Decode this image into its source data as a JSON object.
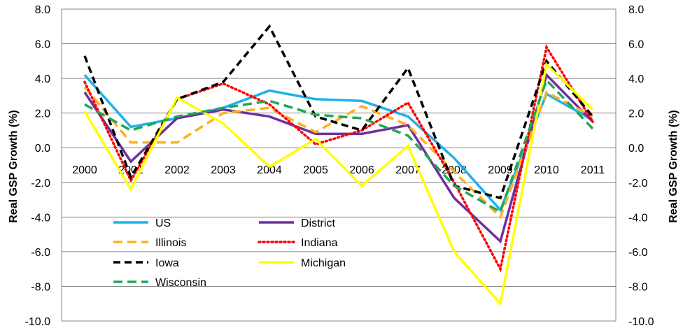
{
  "chart_data": {
    "type": "line",
    "title": "",
    "xlabel": "",
    "ylabel": "Real GSP Growth (%)",
    "ylabel_right": "Real GSP Growth (%)",
    "ylim": [
      -10,
      8
    ],
    "yticks": [
      "8.0",
      "6.0",
      "4.0",
      "2.0",
      "0.0",
      "-2.0",
      "-4.0",
      "-6.0",
      "-8.0",
      "-10.0"
    ],
    "grid": "horizontal",
    "legend_position": "lower-left inside",
    "categories": [
      "2000",
      "2001",
      "2002",
      "2003",
      "2004",
      "2005",
      "2006",
      "2007",
      "2008",
      "2009",
      "2010",
      "2011"
    ],
    "series": [
      {
        "name": "US",
        "color": "#1EB1EA",
        "dash": "solid",
        "values": [
          4.2,
          1.2,
          1.7,
          2.3,
          3.3,
          2.8,
          2.7,
          1.8,
          -0.6,
          -3.6,
          3.1,
          1.6
        ]
      },
      {
        "name": "District",
        "color": "#7030A0",
        "dash": "solid",
        "values": [
          3.2,
          -0.8,
          1.7,
          2.2,
          1.8,
          0.8,
          0.8,
          1.3,
          -2.9,
          -5.4,
          4.2,
          1.5
        ]
      },
      {
        "name": "Illinois",
        "color": "#FFB01F",
        "dash": "longdash",
        "values": [
          3.5,
          0.3,
          0.3,
          2.0,
          2.3,
          0.9,
          2.4,
          1.3,
          -1.4,
          -4.0,
          3.2,
          1.8
        ]
      },
      {
        "name": "Indiana",
        "color": "#FF0000",
        "dash": "dot",
        "values": [
          3.8,
          -1.9,
          2.8,
          3.7,
          2.5,
          0.2,
          1.0,
          2.6,
          -2.0,
          -7.0,
          5.8,
          1.5
        ]
      },
      {
        "name": "Iowa",
        "color": "#000000",
        "dash": "dash",
        "values": [
          5.3,
          -1.7,
          2.8,
          3.8,
          7.0,
          1.8,
          1.0,
          4.6,
          -2.2,
          -2.9,
          5.0,
          1.8
        ]
      },
      {
        "name": "Michigan",
        "color": "#FFFF00",
        "dash": "solid",
        "values": [
          2.1,
          -2.4,
          2.9,
          1.4,
          -1.1,
          0.5,
          -2.2,
          0.1,
          -6.0,
          -9.0,
          4.8,
          2.2
        ]
      },
      {
        "name": "Wisconsin",
        "color": "#1FA855",
        "dash": "longdash",
        "values": [
          2.5,
          1.0,
          1.8,
          2.3,
          2.7,
          1.9,
          1.7,
          0.7,
          -2.2,
          -3.7,
          3.9,
          1.1
        ]
      }
    ]
  }
}
